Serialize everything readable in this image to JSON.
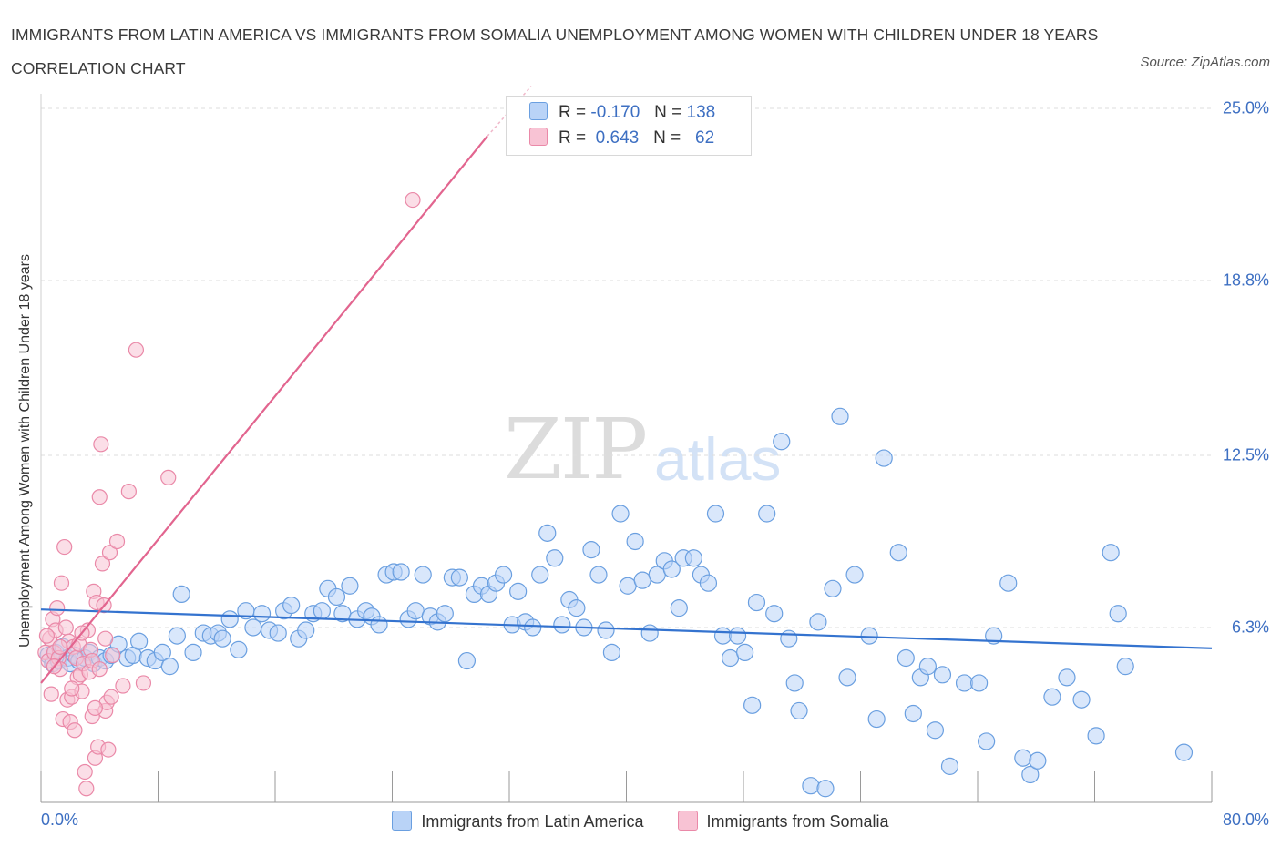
{
  "header": {
    "title": "IMMIGRANTS FROM LATIN AMERICA VS IMMIGRANTS FROM SOMALIA UNEMPLOYMENT AMONG WOMEN WITH CHILDREN UNDER 18 YEARS CORRELATION CHART",
    "source": "Source: ZipAtlas.com"
  },
  "watermark": {
    "zip": "ZIP",
    "atlas": "atlas"
  },
  "legend": {
    "series1": {
      "r_label": "R =",
      "r_value": "-0.170",
      "n_label": "N =",
      "n_value": "138"
    },
    "series2": {
      "r_label": "R =",
      "r_value": "0.643",
      "n_label": "N =",
      "n_value": "62"
    }
  },
  "colors": {
    "blue_fill": "#b9d3f7",
    "blue_stroke": "#6a9fe0",
    "blue_line": "#3473cf",
    "pink_fill": "#f8c3d4",
    "pink_stroke": "#ea89a8",
    "pink_line": "#e2658f",
    "accent_text": "#3d6fc2"
  },
  "chart_data": {
    "type": "scatter",
    "title": "IMMIGRANTS FROM LATIN AMERICA VS IMMIGRANTS FROM SOMALIA UNEMPLOYMENT AMONG WOMEN WITH CHILDREN UNDER 18 YEARS CORRELATION CHART",
    "xlabel": "",
    "ylabel": "Unemployment Among Women with Children Under 18 years",
    "xlim": [
      0,
      80
    ],
    "ylim": [
      0,
      25
    ],
    "x_tick_labels": [
      "0.0%",
      "80.0%"
    ],
    "y_ticks": [
      6.3,
      12.5,
      18.8,
      25.0
    ],
    "y_tick_labels": [
      "6.3%",
      "12.5%",
      "18.8%",
      "25.0%"
    ],
    "grid": "horizontal dashed",
    "legend_position": "top-center",
    "series": [
      {
        "name": "Immigrants from Latin America",
        "color": "#6a9fe0",
        "trend": {
          "x": [
            0,
            80
          ],
          "y": [
            6.95,
            5.55
          ]
        },
        "points": [
          [
            0.5,
            5.3
          ],
          [
            0.8,
            5.0
          ],
          [
            1.0,
            5.4
          ],
          [
            1.2,
            5.1
          ],
          [
            1.5,
            5.6
          ],
          [
            1.8,
            5.2
          ],
          [
            2.0,
            5.0
          ],
          [
            2.3,
            5.3
          ],
          [
            2.6,
            5.1
          ],
          [
            3.0,
            5.2
          ],
          [
            3.3,
            5.4
          ],
          [
            3.6,
            5.0
          ],
          [
            4.0,
            5.2
          ],
          [
            4.4,
            5.1
          ],
          [
            4.8,
            5.3
          ],
          [
            5.3,
            5.7
          ],
          [
            5.9,
            5.2
          ],
          [
            6.3,
            5.3
          ],
          [
            6.7,
            5.8
          ],
          [
            7.3,
            5.2
          ],
          [
            7.8,
            5.1
          ],
          [
            8.3,
            5.4
          ],
          [
            8.8,
            4.9
          ],
          [
            9.3,
            6.0
          ],
          [
            9.6,
            7.5
          ],
          [
            10.4,
            5.4
          ],
          [
            11.1,
            6.1
          ],
          [
            11.6,
            6.0
          ],
          [
            12.1,
            6.1
          ],
          [
            12.4,
            5.9
          ],
          [
            12.9,
            6.6
          ],
          [
            13.5,
            5.5
          ],
          [
            14.0,
            6.9
          ],
          [
            14.5,
            6.3
          ],
          [
            15.1,
            6.8
          ],
          [
            15.6,
            6.2
          ],
          [
            16.2,
            6.1
          ],
          [
            16.6,
            6.9
          ],
          [
            17.1,
            7.1
          ],
          [
            17.6,
            5.9
          ],
          [
            18.1,
            6.2
          ],
          [
            18.6,
            6.8
          ],
          [
            19.2,
            6.9
          ],
          [
            19.6,
            7.7
          ],
          [
            20.2,
            7.4
          ],
          [
            20.6,
            6.8
          ],
          [
            21.1,
            7.8
          ],
          [
            21.6,
            6.6
          ],
          [
            22.2,
            6.9
          ],
          [
            22.6,
            6.7
          ],
          [
            23.1,
            6.4
          ],
          [
            23.6,
            8.2
          ],
          [
            24.1,
            8.3
          ],
          [
            24.6,
            8.3
          ],
          [
            25.1,
            6.6
          ],
          [
            25.6,
            6.9
          ],
          [
            26.1,
            8.2
          ],
          [
            26.6,
            6.7
          ],
          [
            27.1,
            6.5
          ],
          [
            27.6,
            6.8
          ],
          [
            28.1,
            8.1
          ],
          [
            28.6,
            8.1
          ],
          [
            29.1,
            5.1
          ],
          [
            29.6,
            7.5
          ],
          [
            30.1,
            7.8
          ],
          [
            30.6,
            7.5
          ],
          [
            31.1,
            7.9
          ],
          [
            31.6,
            8.2
          ],
          [
            32.2,
            6.4
          ],
          [
            32.6,
            7.6
          ],
          [
            33.1,
            6.5
          ],
          [
            33.6,
            6.3
          ],
          [
            34.1,
            8.2
          ],
          [
            34.6,
            9.7
          ],
          [
            35.1,
            8.8
          ],
          [
            35.6,
            6.4
          ],
          [
            36.1,
            7.3
          ],
          [
            36.6,
            7.0
          ],
          [
            37.1,
            6.3
          ],
          [
            37.6,
            9.1
          ],
          [
            38.1,
            8.2
          ],
          [
            38.6,
            6.2
          ],
          [
            39.0,
            5.4
          ],
          [
            39.6,
            10.4
          ],
          [
            40.1,
            7.8
          ],
          [
            40.6,
            9.4
          ],
          [
            41.1,
            8.0
          ],
          [
            41.6,
            6.1
          ],
          [
            42.1,
            8.2
          ],
          [
            42.6,
            8.7
          ],
          [
            43.1,
            8.4
          ],
          [
            43.6,
            7.0
          ],
          [
            43.9,
            8.8
          ],
          [
            44.6,
            8.8
          ],
          [
            45.1,
            8.2
          ],
          [
            45.6,
            7.9
          ],
          [
            46.1,
            10.4
          ],
          [
            46.6,
            6.0
          ],
          [
            47.1,
            5.2
          ],
          [
            47.6,
            6.0
          ],
          [
            48.1,
            5.4
          ],
          [
            48.6,
            3.5
          ],
          [
            48.9,
            7.2
          ],
          [
            49.6,
            10.4
          ],
          [
            50.1,
            6.8
          ],
          [
            50.6,
            13.0
          ],
          [
            51.1,
            5.9
          ],
          [
            51.5,
            4.3
          ],
          [
            51.8,
            3.3
          ],
          [
            52.6,
            0.6
          ],
          [
            53.1,
            6.5
          ],
          [
            53.6,
            0.5
          ],
          [
            54.1,
            7.7
          ],
          [
            54.6,
            13.9
          ],
          [
            55.1,
            4.5
          ],
          [
            55.6,
            8.2
          ],
          [
            56.6,
            6.0
          ],
          [
            57.1,
            3.0
          ],
          [
            57.6,
            12.4
          ],
          [
            58.6,
            9.0
          ],
          [
            59.1,
            5.2
          ],
          [
            59.6,
            3.2
          ],
          [
            60.1,
            4.5
          ],
          [
            60.6,
            4.9
          ],
          [
            61.1,
            2.6
          ],
          [
            61.6,
            4.6
          ],
          [
            62.1,
            1.3
          ],
          [
            63.1,
            4.3
          ],
          [
            64.1,
            4.3
          ],
          [
            64.6,
            2.2
          ],
          [
            65.1,
            6.0
          ],
          [
            66.1,
            7.9
          ],
          [
            67.1,
            1.6
          ],
          [
            67.6,
            1.0
          ],
          [
            68.1,
            1.5
          ],
          [
            69.1,
            3.8
          ],
          [
            70.1,
            4.5
          ],
          [
            71.1,
            3.7
          ],
          [
            72.1,
            2.4
          ],
          [
            73.1,
            9.0
          ],
          [
            73.6,
            6.8
          ],
          [
            74.1,
            4.9
          ],
          [
            78.1,
            1.8
          ]
        ]
      },
      {
        "name": "Immigrants from Somalia",
        "color": "#ea89a8",
        "trend": {
          "x": [
            0,
            30.5
          ],
          "y": [
            4.3,
            24.0
          ]
        },
        "trend_dashed": {
          "x": [
            30.5,
            33.5
          ],
          "y": [
            24.0,
            25.8
          ]
        },
        "points": [
          [
            0.3,
            5.4
          ],
          [
            0.5,
            5.1
          ],
          [
            0.6,
            5.9
          ],
          [
            0.7,
            3.9
          ],
          [
            0.8,
            6.6
          ],
          [
            0.9,
            5.4
          ],
          [
            1.0,
            6.2
          ],
          [
            1.1,
            7.0
          ],
          [
            1.2,
            5.2
          ],
          [
            1.3,
            4.8
          ],
          [
            1.4,
            7.9
          ],
          [
            1.5,
            3.0
          ],
          [
            1.6,
            9.2
          ],
          [
            1.7,
            6.3
          ],
          [
            1.8,
            3.7
          ],
          [
            1.9,
            5.8
          ],
          [
            2.0,
            2.9
          ],
          [
            2.1,
            3.8
          ],
          [
            2.2,
            5.6
          ],
          [
            2.3,
            2.6
          ],
          [
            2.4,
            5.2
          ],
          [
            2.5,
            4.5
          ],
          [
            2.6,
            5.7
          ],
          [
            2.7,
            4.6
          ],
          [
            2.8,
            4.0
          ],
          [
            2.9,
            5.0
          ],
          [
            3.0,
            1.1
          ],
          [
            3.1,
            0.5
          ],
          [
            3.2,
            6.2
          ],
          [
            3.3,
            4.7
          ],
          [
            3.4,
            5.5
          ],
          [
            3.5,
            3.1
          ],
          [
            3.6,
            7.6
          ],
          [
            3.7,
            1.6
          ],
          [
            3.8,
            7.2
          ],
          [
            3.9,
            2.0
          ],
          [
            4.0,
            11.0
          ],
          [
            4.1,
            12.9
          ],
          [
            4.2,
            8.6
          ],
          [
            4.3,
            7.1
          ],
          [
            4.4,
            3.3
          ],
          [
            4.5,
            3.6
          ],
          [
            4.6,
            1.9
          ],
          [
            4.7,
            9.0
          ],
          [
            4.8,
            3.8
          ],
          [
            4.9,
            5.3
          ],
          [
            5.2,
            9.4
          ],
          [
            5.6,
            4.2
          ],
          [
            6.0,
            11.2
          ],
          [
            6.5,
            16.3
          ],
          [
            7.0,
            4.3
          ],
          [
            8.7,
            11.7
          ],
          [
            25.4,
            21.7
          ],
          [
            0.4,
            6.0
          ],
          [
            0.9,
            4.9
          ],
          [
            1.3,
            5.6
          ],
          [
            2.1,
            4.1
          ],
          [
            2.8,
            6.1
          ],
          [
            3.5,
            5.1
          ],
          [
            4.0,
            4.8
          ],
          [
            4.4,
            5.9
          ],
          [
            3.7,
            3.4
          ]
        ]
      }
    ]
  },
  "bottom_legend": {
    "series1_label": "Immigrants from Latin America",
    "series2_label": "Immigrants from Somalia"
  },
  "axes": {
    "y_title": "Unemployment Among Women with Children Under 18 years"
  }
}
